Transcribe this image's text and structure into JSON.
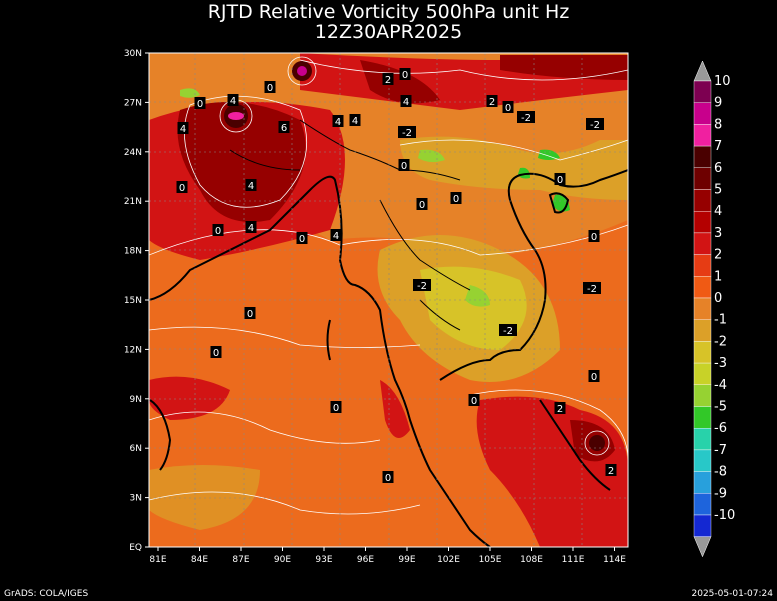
{
  "title": "RJTD Relative Vorticity 500hPa unit Hz",
  "subtitle": "12Z30APR2025",
  "lat_labels": [
    "30N",
    "27N",
    "24N",
    "21N",
    "18N",
    "15N",
    "12N",
    "9N",
    "6N",
    "3N",
    "EQ"
  ],
  "lon_labels": [
    "81E",
    "84E",
    "87E",
    "90E",
    "93E",
    "96E",
    "99E",
    "102E",
    "105E",
    "108E",
    "111E",
    "114E"
  ],
  "colorbar": {
    "labels": [
      "10",
      "9",
      "8",
      "7",
      "6",
      "5",
      "4",
      "3",
      "2",
      "1",
      "0",
      "-1",
      "-2",
      "-3",
      "-4",
      "-5",
      "-6",
      "-7",
      "-8",
      "-9",
      "-10"
    ],
    "colors": [
      "#7d0051",
      "#c8008c",
      "#f020a0",
      "#4a0000",
      "#6e0000",
      "#960000",
      "#b40000",
      "#d21414",
      "#e63c14",
      "#f05a14",
      "#e68228",
      "#dca028",
      "#d7c328",
      "#c8d228",
      "#96d232",
      "#32c828",
      "#28d2aa",
      "#28c8c8",
      "#28a0dc",
      "#1e64dc",
      "#1428d2"
    ]
  },
  "contour_labels": [
    "0",
    "2",
    "4",
    "6",
    "-2"
  ],
  "footer_left": "GrADS: COLA/IGES",
  "footer_right": "2025-05-01-07:24"
}
